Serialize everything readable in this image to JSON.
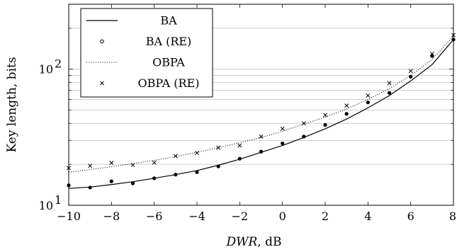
{
  "chart_data": {
    "type": "line",
    "xlabel_main": "DWR",
    "xlabel_unit": ", dB",
    "ylabel": "Key length, bits",
    "xlim": [
      -10,
      8
    ],
    "ylim": [
      10,
      300
    ],
    "yscale": "log",
    "x_ticks": [
      -10,
      -8,
      -6,
      -4,
      -2,
      0,
      2,
      4,
      6,
      8
    ],
    "x_tick_labels": [
      "−10",
      "−8",
      "−6",
      "−4",
      "−2",
      "0",
      "2",
      "4",
      "6",
      "8"
    ],
    "y_tick_labels": [
      {
        "value": 10,
        "base": "10",
        "exp": "1"
      },
      {
        "value": 100,
        "base": "10",
        "exp": "2"
      }
    ],
    "grid": "horizontal",
    "legend_position": "top-left",
    "series": [
      {
        "name": "BA",
        "style": "solid-line",
        "x": [
          -10,
          -9,
          -8,
          -7,
          -6,
          -5,
          -4,
          -3,
          -2,
          -1,
          0,
          1,
          2,
          3,
          4,
          5,
          6,
          7,
          8
        ],
        "y": [
          13.3,
          13.6,
          14.2,
          14.9,
          15.8,
          16.8,
          18.0,
          19.7,
          21.8,
          24.5,
          27.5,
          31.5,
          36.5,
          43,
          52,
          64,
          82,
          108,
          165
        ]
      },
      {
        "name": "BA (RE)",
        "style": "dot-markers",
        "x": [
          -10,
          -9,
          -8,
          -7,
          -6,
          -5,
          -4,
          -3,
          -2,
          -1,
          0,
          1,
          2,
          3,
          4,
          5,
          6,
          7,
          8
        ],
        "y": [
          14,
          13.5,
          15,
          14.5,
          15.8,
          16.8,
          17.5,
          19.3,
          22,
          24.8,
          28.5,
          32,
          39,
          47,
          57,
          67,
          88,
          125,
          165
        ]
      },
      {
        "name": "OBPA",
        "style": "dotted-line",
        "x": [
          -10,
          -9,
          -8,
          -7,
          -6,
          -5,
          -4,
          -3,
          -2,
          -1,
          0,
          1,
          2,
          3,
          4,
          5,
          6,
          7,
          8
        ],
        "y": [
          17.5,
          18.3,
          19.2,
          20.2,
          21.4,
          22.8,
          24.5,
          26.5,
          28.8,
          31.5,
          35,
          39.5,
          44.5,
          51,
          60,
          72,
          90,
          118,
          175
        ]
      },
      {
        "name": "OBPA (RE)",
        "style": "x-markers",
        "x": [
          -10,
          -9,
          -8,
          -7,
          -6,
          -5,
          -4,
          -3,
          -2,
          -1,
          0,
          1,
          2,
          3,
          4,
          5,
          6,
          7,
          8
        ],
        "y": [
          18.8,
          19.5,
          20.5,
          19.8,
          20.6,
          23,
          24.2,
          26.5,
          27.5,
          32,
          36.5,
          40,
          46,
          54,
          64,
          79,
          97,
          130,
          178
        ]
      }
    ]
  }
}
